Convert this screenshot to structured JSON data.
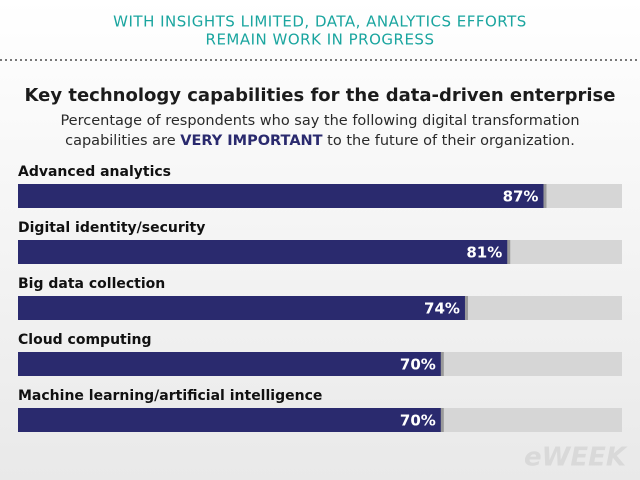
{
  "chart_data": {
    "type": "hbar",
    "header_lines": [
      "WITH INSIGHTS LIMITED, DATA, ANALYTICS EFFORTS",
      "REMAIN WORK IN PROGRESS"
    ],
    "title": "Key technology capabilities for the data-driven enterprise",
    "subtitle_lines": [
      [
        "Percentage of respondents who say the following digital transformation"
      ],
      [
        "capabilities are ",
        "VERY IMPORTANT",
        " to the future of their organization."
      ]
    ],
    "categories": [
      "Advanced analytics",
      "Digital identity/security",
      "Big data collection",
      "Cloud computing",
      "Machine learning/artificial intelligence"
    ],
    "values": [
      87,
      81,
      74,
      70,
      70
    ],
    "value_labels": [
      "87%",
      "81%",
      "74%",
      "70%",
      "70%"
    ],
    "color": "#2a2a6e",
    "track_color": "#d6d6d6",
    "xlim": [
      0,
      100
    ],
    "logo": "eWEEK"
  }
}
